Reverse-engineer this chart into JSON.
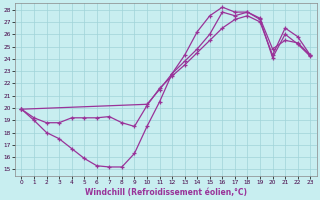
{
  "xlabel": "Windchill (Refroidissement éolien,°C)",
  "bg_color": "#c8eef0",
  "grid_color": "#a0d4d8",
  "line_color": "#993399",
  "xlim": [
    -0.5,
    23.5
  ],
  "ylim": [
    14.5,
    28.5
  ],
  "xticks": [
    0,
    1,
    2,
    3,
    4,
    5,
    6,
    7,
    8,
    9,
    10,
    11,
    12,
    13,
    14,
    15,
    16,
    17,
    18,
    19,
    20,
    21,
    22,
    23
  ],
  "yticks": [
    15,
    16,
    17,
    18,
    19,
    20,
    21,
    22,
    23,
    24,
    25,
    26,
    27,
    28
  ],
  "line1_x": [
    0,
    1,
    2,
    3,
    4,
    5,
    6,
    7,
    8,
    9,
    10,
    11,
    12,
    13,
    14,
    15,
    16,
    17,
    18,
    19,
    20,
    21,
    22,
    23
  ],
  "line1_y": [
    19.9,
    19.0,
    18.0,
    17.5,
    16.7,
    15.9,
    15.3,
    15.2,
    15.2,
    16.3,
    18.5,
    20.5,
    22.8,
    24.3,
    26.2,
    27.5,
    28.2,
    27.8,
    27.8,
    27.2,
    24.1,
    26.0,
    25.2,
    24.2
  ],
  "line2_x": [
    0,
    1,
    2,
    3,
    4,
    5,
    6,
    7,
    8,
    9,
    10,
    11,
    12,
    13,
    14,
    15,
    16,
    17,
    18,
    19,
    20,
    21,
    22,
    23
  ],
  "line2_y": [
    19.9,
    19.2,
    18.8,
    18.8,
    19.2,
    19.2,
    19.2,
    19.3,
    18.8,
    18.5,
    20.2,
    21.6,
    22.6,
    23.5,
    24.5,
    25.5,
    26.5,
    27.2,
    27.5,
    27.0,
    24.3,
    26.5,
    25.8,
    24.3
  ],
  "line3_x": [
    0,
    10,
    11,
    12,
    13,
    14,
    15,
    16,
    17,
    18,
    19,
    20,
    21,
    22,
    23
  ],
  "line3_y": [
    19.9,
    20.3,
    21.5,
    22.8,
    23.8,
    24.8,
    26.0,
    27.8,
    27.5,
    27.8,
    27.3,
    24.8,
    25.5,
    25.3,
    24.3
  ]
}
